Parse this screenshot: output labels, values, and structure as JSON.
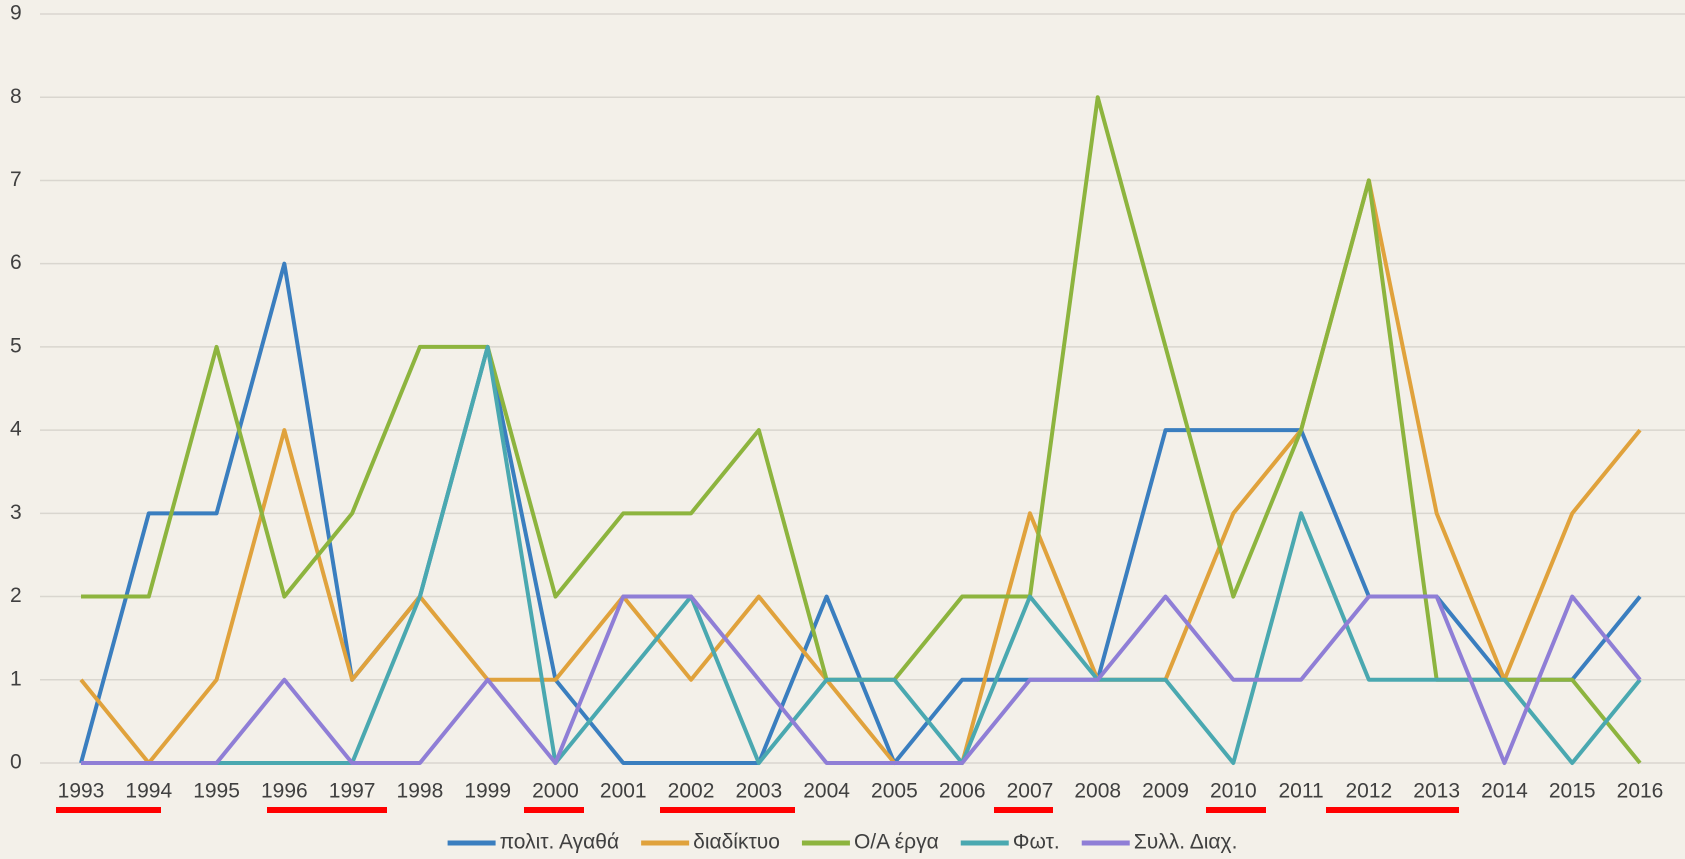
{
  "chart_data": {
    "type": "line",
    "categories": [
      "1993",
      "1994",
      "1995",
      "1996",
      "1997",
      "1998",
      "1999",
      "2000",
      "2001",
      "2002",
      "2003",
      "2004",
      "2005",
      "2006",
      "2007",
      "2008",
      "2009",
      "2010",
      "2011",
      "2012",
      "2013",
      "2014",
      "2015",
      "2016"
    ],
    "series": [
      {
        "name": "πολιτ. Αγαθά",
        "color": "#3a7ebf",
        "values": [
          0,
          3,
          3,
          6,
          1,
          2,
          5,
          1,
          0,
          0,
          0,
          2,
          0,
          1,
          1,
          1,
          4,
          4,
          4,
          2,
          2,
          1,
          1,
          2
        ]
      },
      {
        "name": "διαδίκτυο",
        "color": "#e0a23c",
        "values": [
          1,
          0,
          1,
          4,
          1,
          2,
          1,
          1,
          2,
          1,
          2,
          1,
          0,
          0,
          3,
          1,
          1,
          3,
          4,
          7,
          3,
          1,
          3,
          4
        ]
      },
      {
        "name": "Ο/Α έργα",
        "color": "#8db43e",
        "values": [
          2,
          2,
          5,
          2,
          3,
          5,
          5,
          2,
          3,
          3,
          4,
          1,
          1,
          2,
          2,
          8,
          5,
          2,
          4,
          7,
          1,
          1,
          1,
          0
        ]
      },
      {
        "name": "Φωτ.",
        "color": "#4aa8b0",
        "values": [
          0,
          0,
          0,
          0,
          0,
          2,
          5,
          0,
          1,
          2,
          0,
          1,
          1,
          0,
          2,
          1,
          1,
          0,
          3,
          1,
          1,
          1,
          0,
          1
        ]
      },
      {
        "name": "Συλλ. Διαχ.",
        "color": "#8f7ed6",
        "values": [
          0,
          0,
          0,
          1,
          0,
          0,
          1,
          0,
          2,
          2,
          1,
          0,
          0,
          0,
          1,
          1,
          2,
          1,
          1,
          2,
          2,
          0,
          2,
          1
        ]
      }
    ],
    "ylim": [
      0,
      9
    ],
    "yticks": [
      0,
      1,
      2,
      3,
      4,
      5,
      6,
      7,
      8,
      9
    ],
    "grid": true
  }
}
